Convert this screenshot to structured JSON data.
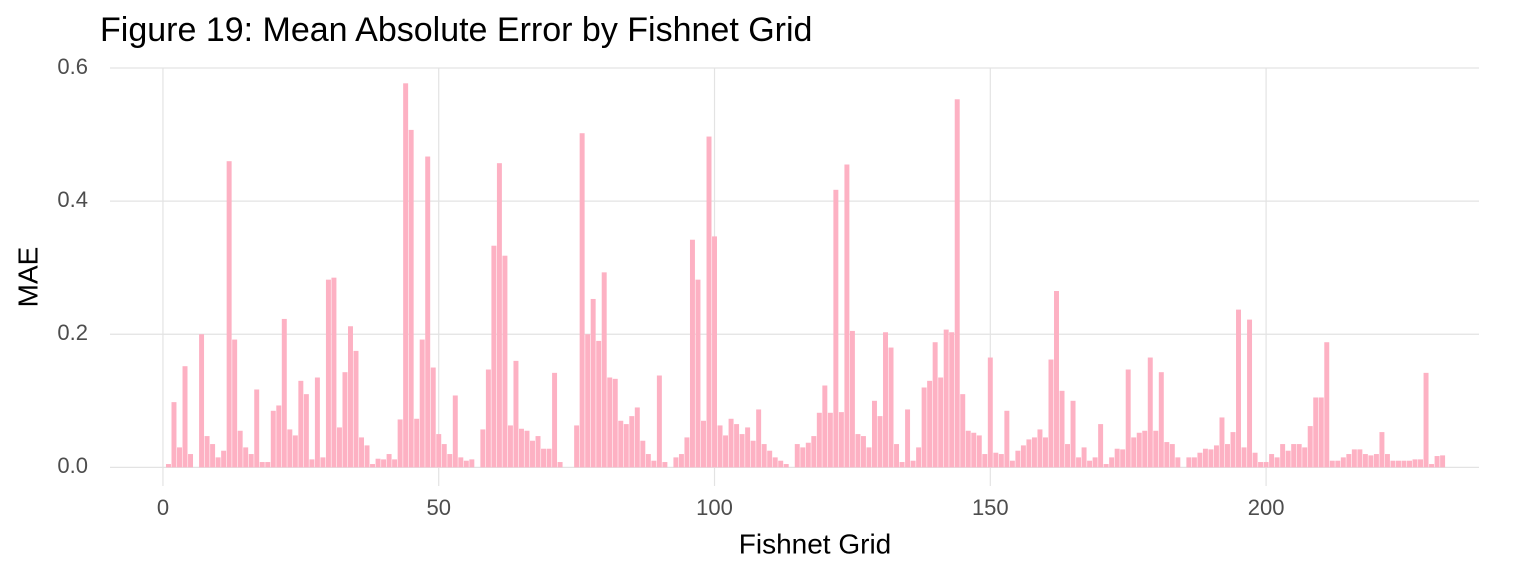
{
  "chart_data": {
    "type": "bar",
    "title": "Figure 19: Mean Absolute Error by Fishnet Grid",
    "x_label": "Fishnet Grid",
    "y_label": "MAE",
    "color": "#fdb1c3",
    "grid": true,
    "xlim": [
      -9.6,
      238.6
    ],
    "xticks": [
      0,
      50,
      100,
      150,
      200
    ],
    "ylim": [
      -0.028,
      0.6
    ],
    "yticks": [
      {
        "value": 0,
        "label": "0.0"
      },
      0.2,
      0.4,
      0.6
    ],
    "x": [
      1,
      2,
      3,
      4,
      5,
      7,
      8,
      9,
      10,
      11,
      12,
      13,
      14,
      15,
      16,
      17,
      18,
      19,
      20,
      21,
      22,
      23,
      24,
      25,
      26,
      27,
      28,
      29,
      30,
      31,
      32,
      33,
      34,
      35,
      36,
      37,
      38,
      39,
      40,
      41,
      42,
      43,
      44,
      45,
      46,
      47,
      48,
      49,
      50,
      51,
      52,
      53,
      54,
      55,
      56,
      58,
      59,
      60,
      61,
      62,
      63,
      64,
      65,
      66,
      67,
      68,
      69,
      70,
      71,
      72,
      75,
      76,
      77,
      78,
      79,
      80,
      81,
      82,
      83,
      84,
      85,
      86,
      87,
      88,
      89,
      90,
      91,
      93,
      94,
      95,
      96,
      97,
      98,
      99,
      100,
      101,
      102,
      103,
      104,
      105,
      106,
      107,
      108,
      109,
      110,
      111,
      112,
      113,
      115,
      116,
      117,
      118,
      119,
      120,
      121,
      122,
      123,
      124,
      125,
      126,
      127,
      128,
      129,
      130,
      131,
      132,
      133,
      134,
      135,
      136,
      137,
      138,
      139,
      140,
      141,
      142,
      143,
      144,
      145,
      146,
      147,
      148,
      149,
      150,
      151,
      152,
      153,
      154,
      155,
      156,
      157,
      158,
      159,
      160,
      161,
      162,
      163,
      164,
      165,
      166,
      167,
      168,
      169,
      170,
      171,
      172,
      173,
      174,
      175,
      176,
      177,
      178,
      179,
      180,
      181,
      182,
      183,
      184,
      186,
      187,
      188,
      189,
      190,
      191,
      192,
      193,
      194,
      195,
      196,
      197,
      198,
      199,
      200,
      201,
      202,
      203,
      204,
      205,
      206,
      207,
      208,
      209,
      210,
      211,
      212,
      213,
      214,
      215,
      216,
      217,
      218,
      219,
      220,
      221,
      222,
      223,
      224,
      225,
      226,
      227,
      228,
      229,
      230,
      231,
      232
    ],
    "values": [
      0.005,
      0.098,
      0.03,
      0.152,
      0.02,
      0.2,
      0.047,
      0.035,
      0.015,
      0.025,
      0.46,
      0.192,
      0.055,
      0.03,
      0.02,
      0.117,
      0.008,
      0.008,
      0.085,
      0.093,
      0.223,
      0.057,
      0.048,
      0.13,
      0.11,
      0.012,
      0.135,
      0.015,
      0.282,
      0.285,
      0.06,
      0.143,
      0.212,
      0.175,
      0.045,
      0.033,
      0.005,
      0.013,
      0.012,
      0.02,
      0.012,
      0.072,
      0.577,
      0.507,
      0.073,
      0.192,
      0.467,
      0.15,
      0.05,
      0.035,
      0.02,
      0.108,
      0.015,
      0.01,
      0.012,
      0.057,
      0.147,
      0.333,
      0.457,
      0.318,
      0.063,
      0.16,
      0.058,
      0.055,
      0.04,
      0.047,
      0.028,
      0.028,
      0.142,
      0.008,
      0.063,
      0.502,
      0.2,
      0.253,
      0.19,
      0.293,
      0.135,
      0.133,
      0.07,
      0.065,
      0.077,
      0.09,
      0.04,
      0.02,
      0.01,
      0.138,
      0.008,
      0.015,
      0.02,
      0.045,
      0.342,
      0.282,
      0.07,
      0.497,
      0.347,
      0.063,
      0.048,
      0.073,
      0.065,
      0.05,
      0.06,
      0.04,
      0.087,
      0.035,
      0.025,
      0.015,
      0.01,
      0.005,
      0.035,
      0.03,
      0.037,
      0.047,
      0.082,
      0.123,
      0.082,
      0.417,
      0.083,
      0.455,
      0.205,
      0.05,
      0.047,
      0.03,
      0.1,
      0.077,
      0.203,
      0.18,
      0.035,
      0.008,
      0.087,
      0.01,
      0.03,
      0.12,
      0.13,
      0.188,
      0.135,
      0.207,
      0.203,
      0.553,
      0.11,
      0.055,
      0.052,
      0.048,
      0.02,
      0.165,
      0.022,
      0.02,
      0.085,
      0.01,
      0.025,
      0.033,
      0.042,
      0.045,
      0.057,
      0.045,
      0.162,
      0.265,
      0.115,
      0.035,
      0.1,
      0.015,
      0.03,
      0.01,
      0.015,
      0.065,
      0.005,
      0.015,
      0.028,
      0.027,
      0.147,
      0.045,
      0.052,
      0.055,
      0.165,
      0.055,
      0.143,
      0.038,
      0.035,
      0.015,
      0.015,
      0.015,
      0.022,
      0.028,
      0.027,
      0.033,
      0.075,
      0.035,
      0.053,
      0.237,
      0.03,
      0.222,
      0.022,
      0.008,
      0.008,
      0.02,
      0.015,
      0.035,
      0.025,
      0.035,
      0.035,
      0.03,
      0.062,
      0.105,
      0.105,
      0.188,
      0.01,
      0.01,
      0.015,
      0.02,
      0.027,
      0.027,
      0.02,
      0.018,
      0.02,
      0.053,
      0.02,
      0.01,
      0.01,
      0.01,
      0.01,
      0.012,
      0.012,
      0.142,
      0.005,
      0.017,
      0.018
    ]
  }
}
